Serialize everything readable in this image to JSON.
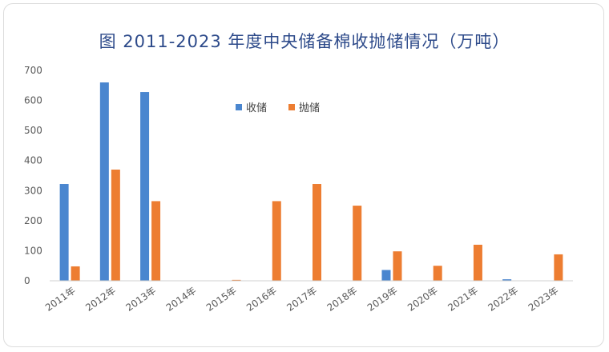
{
  "chart_data": {
    "type": "bar",
    "title": "图 2011-2023 年度中央储备棉收抛储情况（万吨）",
    "categories": [
      "2011年",
      "2012年",
      "2013年",
      "2014年",
      "2015年",
      "2016年",
      "2017年",
      "2018年",
      "2019年",
      "2020年",
      "2021年",
      "2022年",
      "2023年"
    ],
    "series": [
      {
        "name": "收储",
        "color": "#4a86cf",
        "values": [
          322,
          660,
          628,
          0,
          0,
          0,
          0,
          0,
          36,
          0,
          0,
          5,
          0
        ]
      },
      {
        "name": "抛储",
        "color": "#ed7d31",
        "values": [
          48,
          370,
          265,
          0,
          3,
          265,
          322,
          250,
          98,
          50,
          120,
          0,
          88
        ]
      }
    ],
    "ylim": [
      0,
      700
    ],
    "yticks": [
      0,
      100,
      200,
      300,
      400,
      500,
      600,
      700
    ],
    "xlabel": "",
    "ylabel": "",
    "grid": false,
    "legend_position": "top-center"
  }
}
